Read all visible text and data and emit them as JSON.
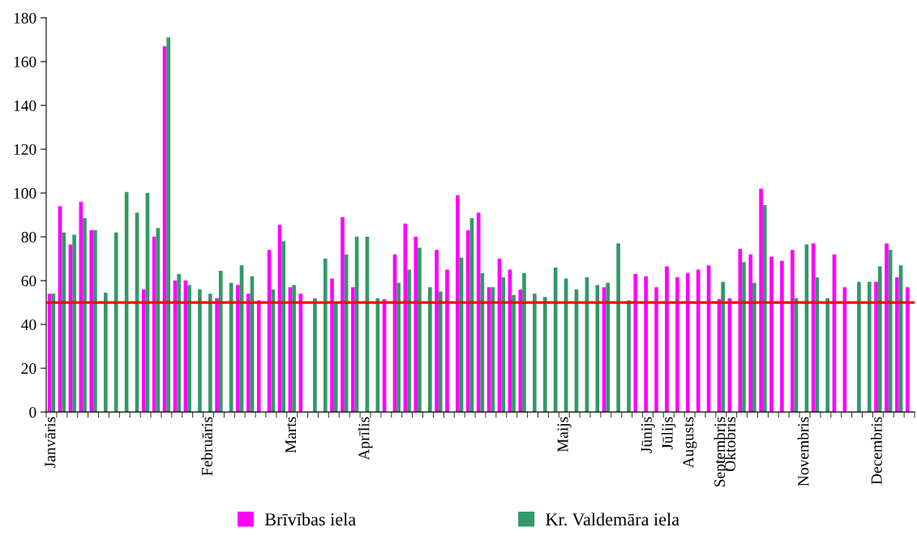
{
  "chart_data": {
    "type": "bar",
    "categories": [
      "Janvāris",
      null,
      null,
      null,
      null,
      null,
      null,
      null,
      null,
      null,
      null,
      null,
      null,
      null,
      null,
      "Februāris",
      null,
      null,
      null,
      null,
      null,
      null,
      null,
      "Marts",
      null,
      null,
      null,
      null,
      null,
      null,
      "Aprīlis",
      null,
      null,
      null,
      null,
      null,
      null,
      null,
      null,
      null,
      null,
      null,
      null,
      null,
      null,
      null,
      null,
      null,
      null,
      "Maijs",
      null,
      null,
      null,
      null,
      null,
      null,
      null,
      "Jūnijs",
      null,
      "Jūlijs",
      null,
      "Augusts",
      null,
      null,
      "Septembris",
      "Oktobris",
      null,
      null,
      null,
      null,
      null,
      null,
      "Novembris",
      null,
      null,
      null,
      null,
      null,
      null,
      "Decembris",
      null,
      null,
      null
    ],
    "series": [
      {
        "name": "Brīvības iela",
        "color": "#ff00ff",
        "values": [
          54,
          94,
          76.5,
          96,
          83,
          null,
          null,
          null,
          null,
          56,
          80,
          167,
          60,
          60,
          null,
          null,
          52,
          null,
          58,
          54,
          51,
          74,
          85.5,
          57,
          54,
          null,
          null,
          61,
          89,
          57,
          null,
          null,
          51.5,
          72,
          86,
          80,
          null,
          74,
          65,
          99,
          83,
          91,
          57,
          70,
          65,
          56,
          null,
          null,
          null,
          null,
          null,
          null,
          null,
          57,
          null,
          null,
          63,
          62,
          57,
          66.5,
          61.5,
          63.5,
          65,
          67,
          51.5,
          52,
          74.5,
          72,
          102,
          71,
          69,
          74,
          null,
          77,
          null,
          72,
          57,
          null,
          null,
          59.5,
          77,
          61.5,
          57
        ]
      },
      {
        "name": "Kr. Valdemāra iela",
        "color": "#339966",
        "values": [
          54,
          82,
          81,
          88.5,
          83,
          54.5,
          82,
          100.5,
          91,
          100,
          84,
          171,
          63,
          58,
          56,
          54,
          64.5,
          59,
          67,
          62,
          null,
          56,
          78,
          58,
          null,
          52,
          70,
          50,
          72,
          80,
          80,
          52,
          null,
          59,
          65,
          75,
          57,
          55,
          null,
          70.5,
          88.5,
          63.5,
          57,
          61.5,
          53.5,
          63.5,
          54,
          52.5,
          66,
          61,
          56,
          61.5,
          58,
          59,
          77,
          51,
          null,
          null,
          null,
          null,
          null,
          null,
          null,
          null,
          59.5,
          null,
          68.5,
          59,
          94.5,
          null,
          null,
          52,
          76.5,
          61.5,
          52,
          null,
          null,
          59.5,
          59.5,
          66.5,
          74,
          67,
          null
        ]
      }
    ],
    "ylim": [
      0,
      180
    ],
    "yticks": [
      0,
      20,
      40,
      60,
      80,
      100,
      120,
      140,
      160,
      180
    ],
    "ref_lines": [
      {
        "axis": "y",
        "value": 50,
        "color": "#ff0000"
      }
    ],
    "grid": false,
    "legend": "bottom"
  }
}
